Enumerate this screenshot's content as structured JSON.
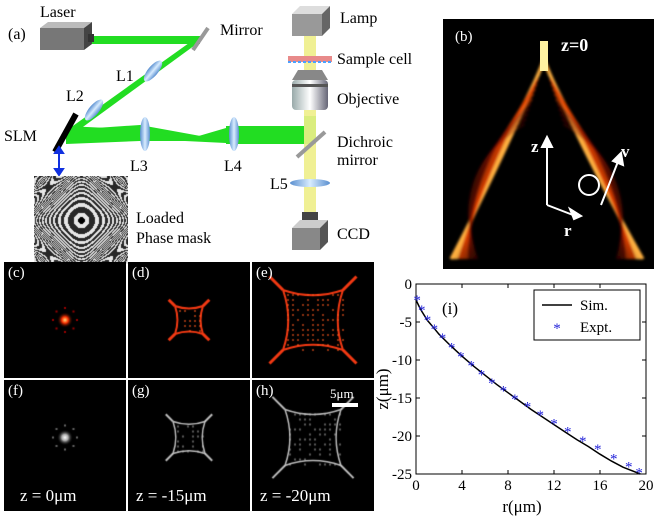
{
  "setup": {
    "panel_label": "(a)",
    "laser": "Laser",
    "mirror": "Mirror",
    "lamp": "Lamp",
    "sample_cell": "Sample cell",
    "objective": "Objective",
    "dichroic_line1": "Dichroic",
    "dichroic_line2": "mirror",
    "slm": "SLM",
    "l1": "L1",
    "l2": "L2",
    "l3": "L3",
    "l4": "L4",
    "l5": "L5",
    "ccd": "CCD",
    "loaded_line1": "Loaded",
    "loaded_line2": "Phase mask",
    "beam_color": "#22dd22",
    "lamp_beam_color": "#eeee88"
  },
  "panel_b": {
    "label": "(b)",
    "z_title": "z=0",
    "axis_z": "z",
    "axis_r": "r",
    "axis_v": "v"
  },
  "panels_top": [
    {
      "label": "(c)"
    },
    {
      "label": "(d)"
    },
    {
      "label": "(e)"
    }
  ],
  "panels_bottom": [
    {
      "label": "(f)",
      "caption": "z = 0μm"
    },
    {
      "label": "(g)",
      "caption": "z = -15μm"
    },
    {
      "label": "(h)",
      "caption": "z = -20μm",
      "scalebar": "5μm"
    }
  ],
  "chart_data": {
    "type": "line",
    "panel_label": "(i)",
    "xlabel": "r(μm)",
    "ylabel": "z(μm)",
    "xlim": [
      0,
      20
    ],
    "ylim": [
      -25,
      0
    ],
    "xticks": [
      0,
      4,
      8,
      12,
      16,
      20
    ],
    "yticks": [
      0,
      -5,
      -10,
      -15,
      -20,
      -25
    ],
    "legend_position": "top-right",
    "series": [
      {
        "name": "Sim.",
        "style": "line",
        "color": "#000000",
        "x": [
          0,
          0.25,
          0.5,
          1,
          1.5,
          2,
          3,
          4,
          5,
          6,
          7,
          8,
          9,
          10,
          11,
          12,
          13,
          14,
          15,
          16,
          17,
          18,
          19.5
        ],
        "y": [
          -2.1,
          -2.9,
          -3.6,
          -4.8,
          -5.7,
          -6.6,
          -8.1,
          -9.5,
          -10.8,
          -12.0,
          -13.2,
          -14.3,
          -15.4,
          -16.5,
          -17.5,
          -18.5,
          -19.5,
          -20.5,
          -21.4,
          -22.4,
          -23.3,
          -24.1,
          -25.0
        ]
      },
      {
        "name": "Expt.",
        "style": "marker",
        "marker": "*",
        "color": "#1f1fd8",
        "x": [
          0.1,
          0.5,
          1.0,
          1.6,
          2.3,
          3.1,
          3.9,
          4.8,
          5.7,
          6.6,
          7.6,
          8.6,
          9.7,
          10.8,
          12.0,
          13.2,
          14.5,
          15.8,
          17.2,
          18.5,
          19.4
        ],
        "y": [
          -2.0,
          -3.3,
          -4.6,
          -5.8,
          -7.0,
          -8.2,
          -9.4,
          -10.6,
          -11.8,
          -12.9,
          -13.9,
          -15.0,
          -16.0,
          -17.1,
          -18.2,
          -19.3,
          -20.5,
          -21.6,
          -22.8,
          -23.9,
          -24.7
        ]
      }
    ]
  }
}
